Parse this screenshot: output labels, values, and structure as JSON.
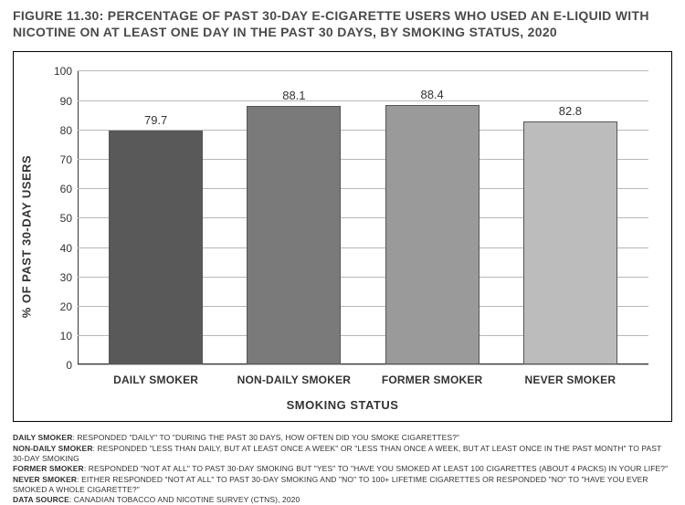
{
  "title": {
    "fignum": "FIGURE 11.30",
    "text": ": PERCENTAGE OF PAST 30-DAY E-CIGARETTE USERS WHO USED AN E-LIQUID WITH NICOTINE ON AT LEAST ONE DAY IN THE PAST 30 DAYS, BY SMOKING STATUS, 2020"
  },
  "chart": {
    "type": "bar",
    "ylabel": "% OF PAST 30-DAY USERS",
    "xlabel": "SMOKING STATUS",
    "ylim": [
      0,
      100
    ],
    "ytick_step": 10,
    "grid_color": "#b8b8b8",
    "background_color": "#ffffff",
    "border_color": "#000000",
    "axis_color": "#333333",
    "label_fontsize": 13,
    "tick_fontsize": 12,
    "value_fontsize": 13,
    "bar_width": 0.68,
    "categories": [
      "DAILY SMOKER",
      "NON-DAILY SMOKER",
      "FORMER SMOKER",
      "NEVER SMOKER"
    ],
    "values": [
      79.7,
      88.1,
      88.4,
      82.8
    ],
    "bar_colors": [
      "#595959",
      "#7a7a7a",
      "#9a9a9a",
      "#bcbcbc"
    ],
    "bar_border": "#555555"
  },
  "footnotes": [
    {
      "term": "DAILY SMOKER",
      "def": ": RESPONDED \"DAILY\" TO \"DURING THE PAST 30 DAYS, HOW OFTEN DID YOU SMOKE CIGARETTES?\""
    },
    {
      "term": "NON-DAILY SMOKER",
      "def": ": RESPONDED \"LESS THAN DAILY, BUT AT LEAST ONCE A WEEK\" OR \"LESS THAN ONCE A WEEK, BUT AT LEAST ONCE IN THE PAST MONTH\" TO PAST 30-DAY SMOKING"
    },
    {
      "term": "FORMER SMOKER",
      "def": ": RESPONDED \"NOT AT ALL\" TO PAST 30-DAY SMOKING BUT \"YES\" TO \"HAVE YOU SMOKED AT LEAST 100 CIGARETTES (ABOUT 4 PACKS) IN YOUR LIFE?\""
    },
    {
      "term": "NEVER SMOKER",
      "def": ": EITHER RESPONDED \"NOT AT ALL\" TO PAST 30-DAY SMOKING AND \"NO\" TO 100+ LIFETIME CIGARETTES OR RESPONDED \"NO\" TO \"HAVE YOU EVER SMOKED A WHOLE CIGARETTE?\""
    },
    {
      "term": "DATA SOURCE",
      "def": ": CANADIAN TOBACCO AND NICOTINE SURVEY (CTNS), 2020"
    }
  ]
}
